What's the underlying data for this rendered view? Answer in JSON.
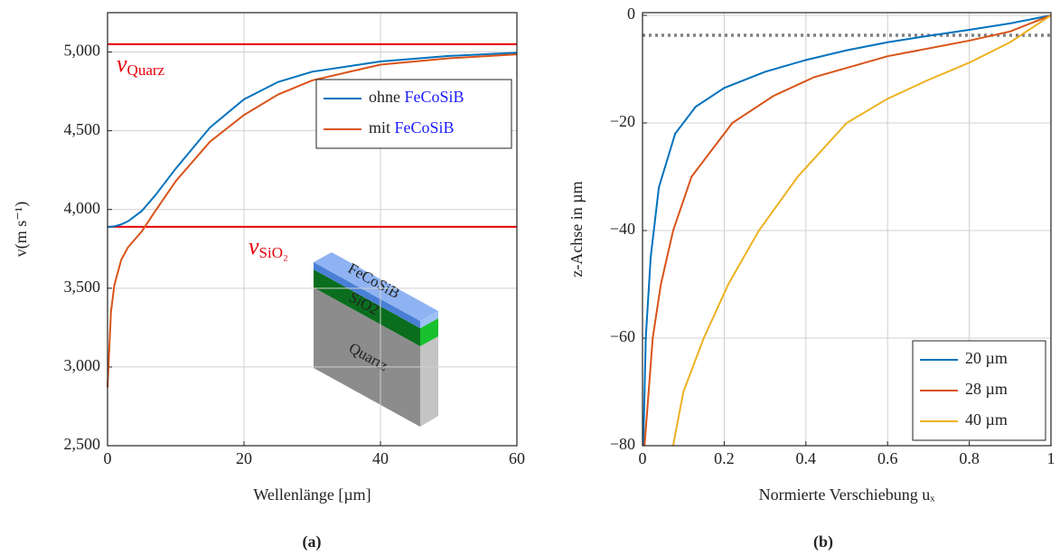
{
  "chart_data": [
    {
      "type": "line",
      "caption": "(a)",
      "x_label": "Wellenlänge [µm]",
      "y_label": "v(m s⁻¹)",
      "xlim": [
        0,
        60
      ],
      "ylim": [
        2500,
        5250
      ],
      "xticks": [
        0,
        20,
        40,
        60
      ],
      "yticks": [
        {
          "value": 2500,
          "label": "2,500"
        },
        {
          "value": 3000,
          "label": "3,000"
        },
        {
          "value": 3500,
          "label": "3,500"
        },
        {
          "value": 4000,
          "label": "4,000"
        },
        {
          "value": 4500,
          "label": "4,500"
        },
        {
          "value": 5000,
          "label": "5,000"
        }
      ],
      "grid": true,
      "legend": "upper right",
      "legend_highlight_color": "#1a1aff",
      "x": [
        0,
        0.5,
        1,
        2,
        3,
        5,
        7,
        10,
        15,
        20,
        25,
        30,
        40,
        50,
        60
      ],
      "series": [
        {
          "name": "ohne FeCoSiB",
          "color": "#0072bd",
          "values": [
            3890,
            3891,
            3893,
            3905,
            3925,
            3990,
            4090,
            4260,
            4520,
            4700,
            4810,
            4875,
            4940,
            4975,
            4995
          ]
        },
        {
          "name": "mit FeCoSiB",
          "color": "#d95319",
          "values": [
            2870,
            3350,
            3520,
            3680,
            3760,
            3860,
            3990,
            4180,
            4430,
            4600,
            4730,
            4820,
            4920,
            4960,
            4985
          ]
        }
      ],
      "hlines": [
        {
          "value": 5050,
          "color": "#e8000b",
          "label": {
            "symbol": "v",
            "subscript": "Quarz"
          }
        },
        {
          "value": 3890,
          "color": "#e8000b",
          "label": {
            "symbol": "v",
            "subscript": "SiO₂"
          }
        }
      ],
      "inset": {
        "layers": [
          "FeCoSiB",
          "SiO2",
          "Quartz"
        ]
      }
    },
    {
      "type": "line",
      "caption": "(b)",
      "x_label": "Normierte Verschiebung uₓ",
      "y_label": "z-Achse in µm",
      "xlim": [
        0,
        1
      ],
      "ylim": [
        -80,
        0.5
      ],
      "xticks": [
        0,
        0.2,
        0.4,
        0.6,
        0.8,
        1
      ],
      "yticks": [
        {
          "value": -80,
          "label": "−80"
        },
        {
          "value": -60,
          "label": "−60"
        },
        {
          "value": -40,
          "label": "−40"
        },
        {
          "value": -20,
          "label": "−20"
        },
        0
      ],
      "grid": true,
      "legend": "lower right",
      "series": [
        {
          "name": "20 µm",
          "color": "#0072bd",
          "x": [
            0.002,
            0.008,
            0.02,
            0.04,
            0.08,
            0.13,
            0.2,
            0.3,
            0.4,
            0.5,
            0.6,
            0.7,
            0.8,
            0.9,
            1
          ],
          "values": [
            -80,
            -60,
            -45,
            -32,
            -22,
            -17,
            -13.5,
            -10.5,
            -8.3,
            -6.5,
            -5,
            -3.8,
            -2.7,
            -1.5,
            0
          ]
        },
        {
          "name": "28 µm",
          "color": "#d95319",
          "x": [
            0.005,
            0.015,
            0.025,
            0.045,
            0.075,
            0.12,
            0.22,
            0.32,
            0.42,
            0.6,
            0.8,
            0.9,
            1
          ],
          "values": [
            -80,
            -70,
            -60,
            -50,
            -40,
            -30,
            -20,
            -15,
            -11.5,
            -7.6,
            -4.7,
            -3,
            0
          ]
        },
        {
          "name": "40 µm",
          "color": "#edb120",
          "x": [
            0.075,
            0.1,
            0.15,
            0.21,
            0.285,
            0.38,
            0.5,
            0.6,
            0.7,
            0.8,
            0.9,
            1
          ],
          "values": [
            -80,
            -70,
            -60,
            -50,
            -40,
            -30,
            -20,
            -15.5,
            -12,
            -8.8,
            -5,
            0
          ]
        }
      ],
      "hlines": [
        {
          "value": -3.7,
          "color": "#808080",
          "dash": "dotted"
        }
      ]
    }
  ]
}
